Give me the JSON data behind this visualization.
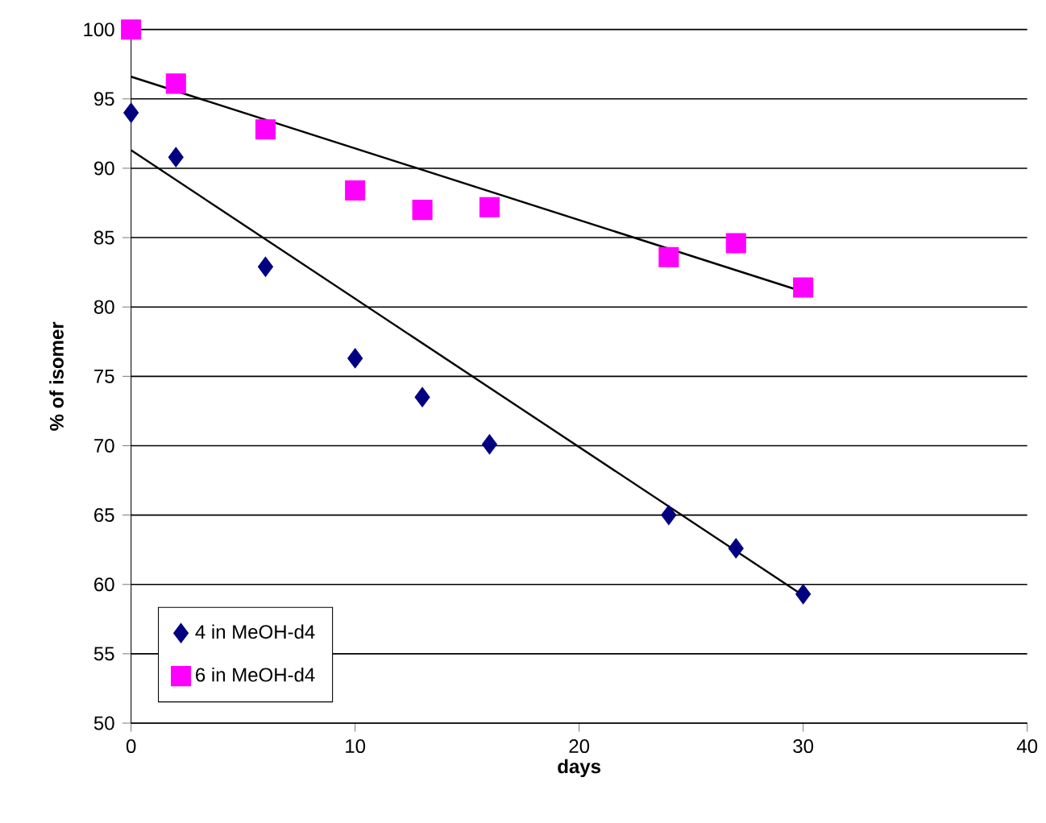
{
  "chart_data": {
    "type": "scatter",
    "xlabel": "days",
    "ylabel": "% of isomer",
    "xlim": [
      0,
      40
    ],
    "ylim": [
      50,
      100
    ],
    "xticks": [
      0,
      10,
      20,
      30,
      40
    ],
    "yticks": [
      50,
      55,
      60,
      65,
      70,
      75,
      80,
      85,
      90,
      95,
      100
    ],
    "grid": "y",
    "legend": "bottom left",
    "series": [
      {
        "name": "4 in MeOH-d4",
        "marker": "diamond",
        "color": "#000080",
        "x": [
          0,
          2,
          6,
          10,
          13,
          16,
          24,
          27,
          30
        ],
        "values": [
          94.0,
          90.8,
          82.9,
          76.3,
          73.5,
          70.1,
          65.0,
          62.6,
          59.3
        ]
      },
      {
        "name": "6 in MeOH-d4",
        "marker": "square",
        "color": "#ff00ff",
        "x": [
          0,
          2,
          6,
          10,
          13,
          16,
          24,
          27,
          30
        ],
        "values": [
          100,
          96.1,
          92.8,
          88.4,
          87.0,
          87.2,
          83.6,
          84.6,
          81.4
        ]
      },
      {
        "type": "line",
        "marker": "none",
        "line_style": "solid",
        "color": "#000000",
        "x": [
          0,
          30
        ],
        "values": [
          91.3,
          59.2
        ]
      },
      {
        "type": "line",
        "marker": "none",
        "line_style": "solid",
        "color": "#000000",
        "x": [
          0,
          30
        ],
        "values": [
          96.6,
          81.1
        ]
      }
    ]
  }
}
